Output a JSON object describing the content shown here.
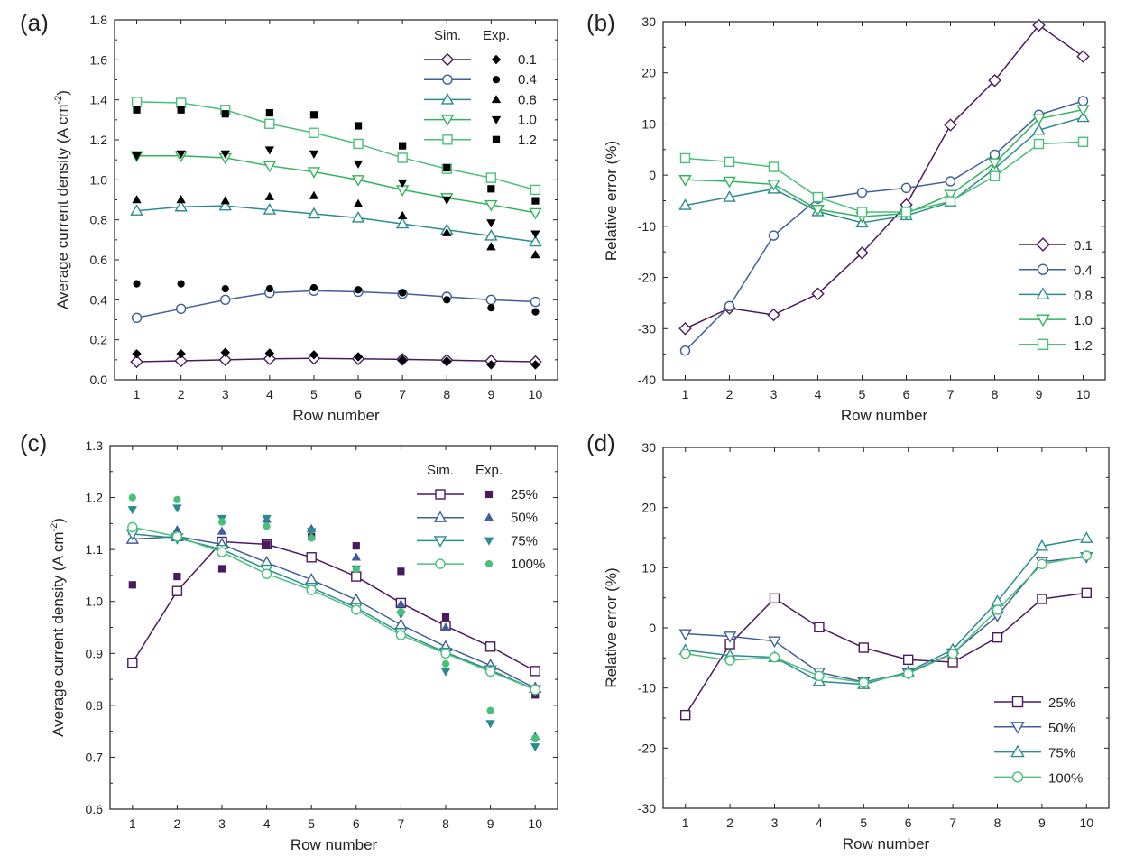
{
  "chart_data": [
    {
      "panel_label": "(a)",
      "type": "line",
      "xlabel": "Row number",
      "ylabel": "Average current density (A cm-2)",
      "xlim": [
        0.5,
        10.5
      ],
      "ylim": [
        0.0,
        1.8
      ],
      "xticks": [
        "1",
        "2",
        "3",
        "4",
        "5",
        "6",
        "7",
        "8",
        "9",
        "10"
      ],
      "yticks": [
        "0.0",
        "0.2",
        "0.4",
        "0.6",
        "0.8",
        "1.0",
        "1.2",
        "1.4",
        "1.6",
        "1.8"
      ],
      "x": [
        1,
        2,
        3,
        4,
        5,
        6,
        7,
        8,
        9,
        10
      ],
      "legend_headers": [
        "Sim.",
        "Exp."
      ],
      "legend_position": "top-right",
      "series": [
        {
          "name": "0.1",
          "color": "#4b1a5e",
          "marker": "diamond",
          "exp_marker": "diamond",
          "sim": [
            0.09,
            0.095,
            0.1,
            0.105,
            0.107,
            0.105,
            0.102,
            0.098,
            0.094,
            0.09
          ],
          "exp": [
            0.13,
            0.13,
            0.137,
            0.133,
            0.125,
            0.115,
            0.1,
            0.093,
            0.075,
            0.075
          ]
        },
        {
          "name": "0.4",
          "color": "#3e5f9a",
          "marker": "circle",
          "exp_marker": "circle",
          "sim": [
            0.31,
            0.355,
            0.4,
            0.435,
            0.445,
            0.44,
            0.43,
            0.415,
            0.4,
            0.39
          ],
          "exp": [
            0.48,
            0.48,
            0.455,
            0.455,
            0.46,
            0.45,
            0.435,
            0.4,
            0.36,
            0.34
          ]
        },
        {
          "name": "0.8",
          "color": "#2a8c8c",
          "marker": "triangle-up",
          "exp_marker": "triangle-up",
          "sim": [
            0.845,
            0.865,
            0.87,
            0.85,
            0.83,
            0.81,
            0.78,
            0.75,
            0.72,
            0.69
          ],
          "exp": [
            0.9,
            0.9,
            0.895,
            0.915,
            0.92,
            0.88,
            0.82,
            0.735,
            0.665,
            0.625
          ]
        },
        {
          "name": "1.0",
          "color": "#30b45a",
          "marker": "triangle-down",
          "exp_marker": "triangle-down",
          "sim": [
            1.12,
            1.12,
            1.11,
            1.07,
            1.04,
            1.0,
            0.95,
            0.91,
            0.875,
            0.835
          ],
          "exp": [
            1.12,
            1.13,
            1.13,
            1.15,
            1.13,
            1.08,
            0.985,
            0.9,
            0.785,
            0.73
          ]
        },
        {
          "name": "1.2",
          "color": "#48c07a",
          "marker": "square",
          "exp_marker": "square",
          "sim": [
            1.39,
            1.385,
            1.35,
            1.28,
            1.235,
            1.18,
            1.11,
            1.055,
            1.01,
            0.95
          ],
          "exp": [
            1.35,
            1.35,
            1.33,
            1.335,
            1.325,
            1.27,
            1.17,
            1.06,
            0.955,
            0.895
          ]
        }
      ]
    },
    {
      "panel_label": "(b)",
      "type": "line",
      "xlabel": "Row number",
      "ylabel": "Relative error (%)",
      "xlim": [
        0.5,
        10.5
      ],
      "ylim": [
        -40,
        30
      ],
      "xticks": [
        "1",
        "2",
        "3",
        "4",
        "5",
        "6",
        "7",
        "8",
        "9",
        "10"
      ],
      "yticks": [
        "-40",
        "-30",
        "-20",
        "-10",
        "0",
        "10",
        "20",
        "30"
      ],
      "x": [
        1,
        2,
        3,
        4,
        5,
        6,
        7,
        8,
        9,
        10
      ],
      "legend_position": "bottom-right",
      "series": [
        {
          "name": "0.1",
          "color": "#4b1a5e",
          "marker": "diamond",
          "values": [
            -30,
            -26,
            -27.3,
            -23.2,
            -15.2,
            -5.8,
            9.8,
            18.5,
            29.3,
            23.2
          ]
        },
        {
          "name": "0.4",
          "color": "#3e5f9a",
          "marker": "circle",
          "values": [
            -34.3,
            -25.6,
            -11.8,
            -4.6,
            -3.4,
            -2.5,
            -1.2,
            4.0,
            11.8,
            14.5
          ]
        },
        {
          "name": "0.8",
          "color": "#2a8c8c",
          "marker": "triangle-up",
          "values": [
            -5.9,
            -4.3,
            -2.7,
            -7.1,
            -9.3,
            -7.9,
            -5.3,
            1.3,
            8.8,
            11.3
          ]
        },
        {
          "name": "1.0",
          "color": "#30b45a",
          "marker": "triangle-down",
          "values": [
            -0.9,
            -1.2,
            -1.8,
            -6.7,
            -8.1,
            -7.5,
            -3.8,
            2.4,
            11.0,
            12.8
          ]
        },
        {
          "name": "1.2",
          "color": "#48c07a",
          "marker": "square",
          "values": [
            3.3,
            2.6,
            1.6,
            -4.3,
            -7.2,
            -7.2,
            -5.1,
            -0.2,
            6.1,
            6.5
          ]
        }
      ]
    },
    {
      "panel_label": "(c)",
      "type": "line",
      "xlabel": "Row number",
      "ylabel": "Average current density (A cm-2)",
      "xlim": [
        0.5,
        10.5
      ],
      "ylim": [
        0.6,
        1.3
      ],
      "xticks": [
        "1",
        "2",
        "3",
        "4",
        "5",
        "6",
        "7",
        "8",
        "9",
        "10"
      ],
      "yticks": [
        "0.6",
        "0.7",
        "0.8",
        "0.9",
        "1.0",
        "1.1",
        "1.2",
        "1.3"
      ],
      "x": [
        1,
        2,
        3,
        4,
        5,
        6,
        7,
        8,
        9,
        10
      ],
      "legend_headers": [
        "Sim.",
        "Exp."
      ],
      "legend_position": "top-right",
      "series": [
        {
          "name": "25%",
          "color": "#4b1a5e",
          "marker": "square",
          "exp_marker": "square",
          "sim": [
            0.882,
            1.02,
            1.115,
            1.11,
            1.085,
            1.048,
            0.997,
            0.953,
            0.913,
            0.866
          ],
          "exp": [
            1.032,
            1.048,
            1.063,
            1.11,
            1.125,
            1.107,
            1.058,
            0.97,
            0.873,
            0.82
          ]
        },
        {
          "name": "50%",
          "color": "#3e5f9a",
          "marker": "triangle-up",
          "exp_marker": "triangle-up",
          "sim": [
            1.12,
            1.125,
            1.11,
            1.075,
            1.042,
            1.003,
            0.955,
            0.913,
            0.877,
            0.833
          ],
          "exp": [
            1.135,
            1.138,
            1.135,
            1.158,
            1.14,
            1.085,
            0.995,
            0.95,
            0.87,
            0.74
          ]
        },
        {
          "name": "75%",
          "color": "#2a8c8c",
          "marker": "triangle-down",
          "exp_marker": "triangle-down",
          "sim": [
            1.13,
            1.122,
            1.1,
            1.062,
            1.027,
            0.988,
            0.94,
            0.902,
            0.868,
            0.83
          ],
          "exp": [
            1.177,
            1.18,
            1.16,
            1.16,
            1.135,
            1.063,
            0.975,
            0.865,
            0.765,
            0.72
          ]
        },
        {
          "name": "100%",
          "color": "#48c07a",
          "marker": "circle",
          "exp_marker": "circle",
          "sim": [
            1.143,
            1.125,
            1.095,
            1.053,
            1.022,
            0.984,
            0.935,
            0.9,
            0.865,
            0.83
          ],
          "exp": [
            1.2,
            1.196,
            1.153,
            1.145,
            1.122,
            1.062,
            0.98,
            0.88,
            0.79,
            0.737
          ]
        }
      ]
    },
    {
      "panel_label": "(d)",
      "type": "line",
      "xlabel": "Row number",
      "ylabel": "Relative error (%)",
      "xlim": [
        0.5,
        10.5
      ],
      "ylim": [
        -30,
        30
      ],
      "xticks": [
        "1",
        "2",
        "3",
        "4",
        "5",
        "6",
        "7",
        "8",
        "9",
        "10"
      ],
      "yticks": [
        "-30",
        "-20",
        "-10",
        "0",
        "10",
        "20",
        "30"
      ],
      "x": [
        1,
        2,
        3,
        4,
        5,
        6,
        7,
        8,
        9,
        10
      ],
      "legend_position": "bottom-right",
      "series": [
        {
          "name": "25%",
          "color": "#4b1a5e",
          "marker": "square",
          "values": [
            -14.5,
            -2.7,
            4.9,
            0.1,
            -3.3,
            -5.3,
            -5.7,
            -1.6,
            4.8,
            5.8
          ]
        },
        {
          "name": "50%",
          "color": "#3e5f9a",
          "marker": "triangle-down",
          "values": [
            -1.0,
            -1.4,
            -2.2,
            -7.4,
            -9.0,
            -7.5,
            -4.2,
            2.0,
            11.0,
            11.8
          ]
        },
        {
          "name": "75%",
          "color": "#2a8c8c",
          "marker": "triangle-up",
          "values": [
            -3.7,
            -4.6,
            -4.9,
            -8.9,
            -9.4,
            -7.3,
            -3.6,
            4.4,
            13.6,
            14.9
          ]
        },
        {
          "name": "100%",
          "color": "#48c07a",
          "marker": "circle",
          "values": [
            -4.3,
            -5.4,
            -4.9,
            -8.0,
            -9.1,
            -7.6,
            -4.3,
            3.0,
            10.6,
            12.0
          ]
        }
      ]
    }
  ]
}
